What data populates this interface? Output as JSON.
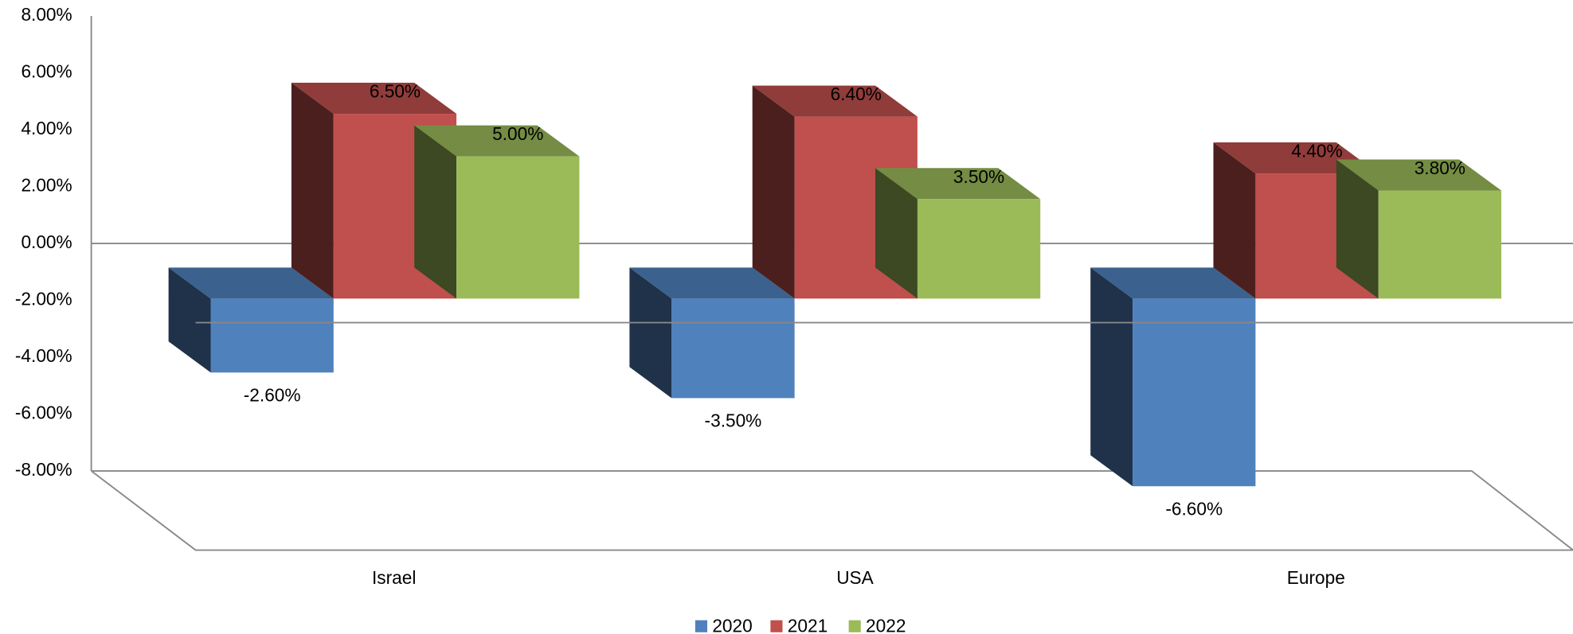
{
  "chart_data": {
    "type": "bar3d",
    "categories": [
      "Israel",
      "USA",
      "Europe"
    ],
    "series": [
      {
        "name": "2020",
        "color": "#4f81bd",
        "values": [
          -2.6,
          -3.5,
          -6.6
        ],
        "value_labels": [
          "-2.60%",
          "-3.50%",
          "-6.60%"
        ]
      },
      {
        "name": "2021",
        "color": "#c0504d",
        "values": [
          6.5,
          6.4,
          4.4
        ],
        "value_labels": [
          "6.50%",
          "6.40%",
          "4.40%"
        ]
      },
      {
        "name": "2022",
        "color": "#9bbb59",
        "values": [
          5.0,
          3.5,
          3.8
        ],
        "value_labels": [
          "5.00%",
          "3.50%",
          "3.80%"
        ]
      }
    ],
    "ylim": [
      -8,
      8
    ],
    "yticks": [
      {
        "value": -8,
        "label": "-8.00%"
      },
      {
        "value": -6,
        "label": "-6.00%"
      },
      {
        "value": -4,
        "label": "-4.00%"
      },
      {
        "value": -2,
        "label": "-2.00%"
      },
      {
        "value": 0,
        "label": "0.00%"
      },
      {
        "value": 2,
        "label": "2.00%"
      },
      {
        "value": 4,
        "label": "4.00%"
      },
      {
        "value": 6,
        "label": "6.00%"
      },
      {
        "value": 8,
        "label": "8.00%"
      }
    ],
    "legend": "bottom"
  }
}
